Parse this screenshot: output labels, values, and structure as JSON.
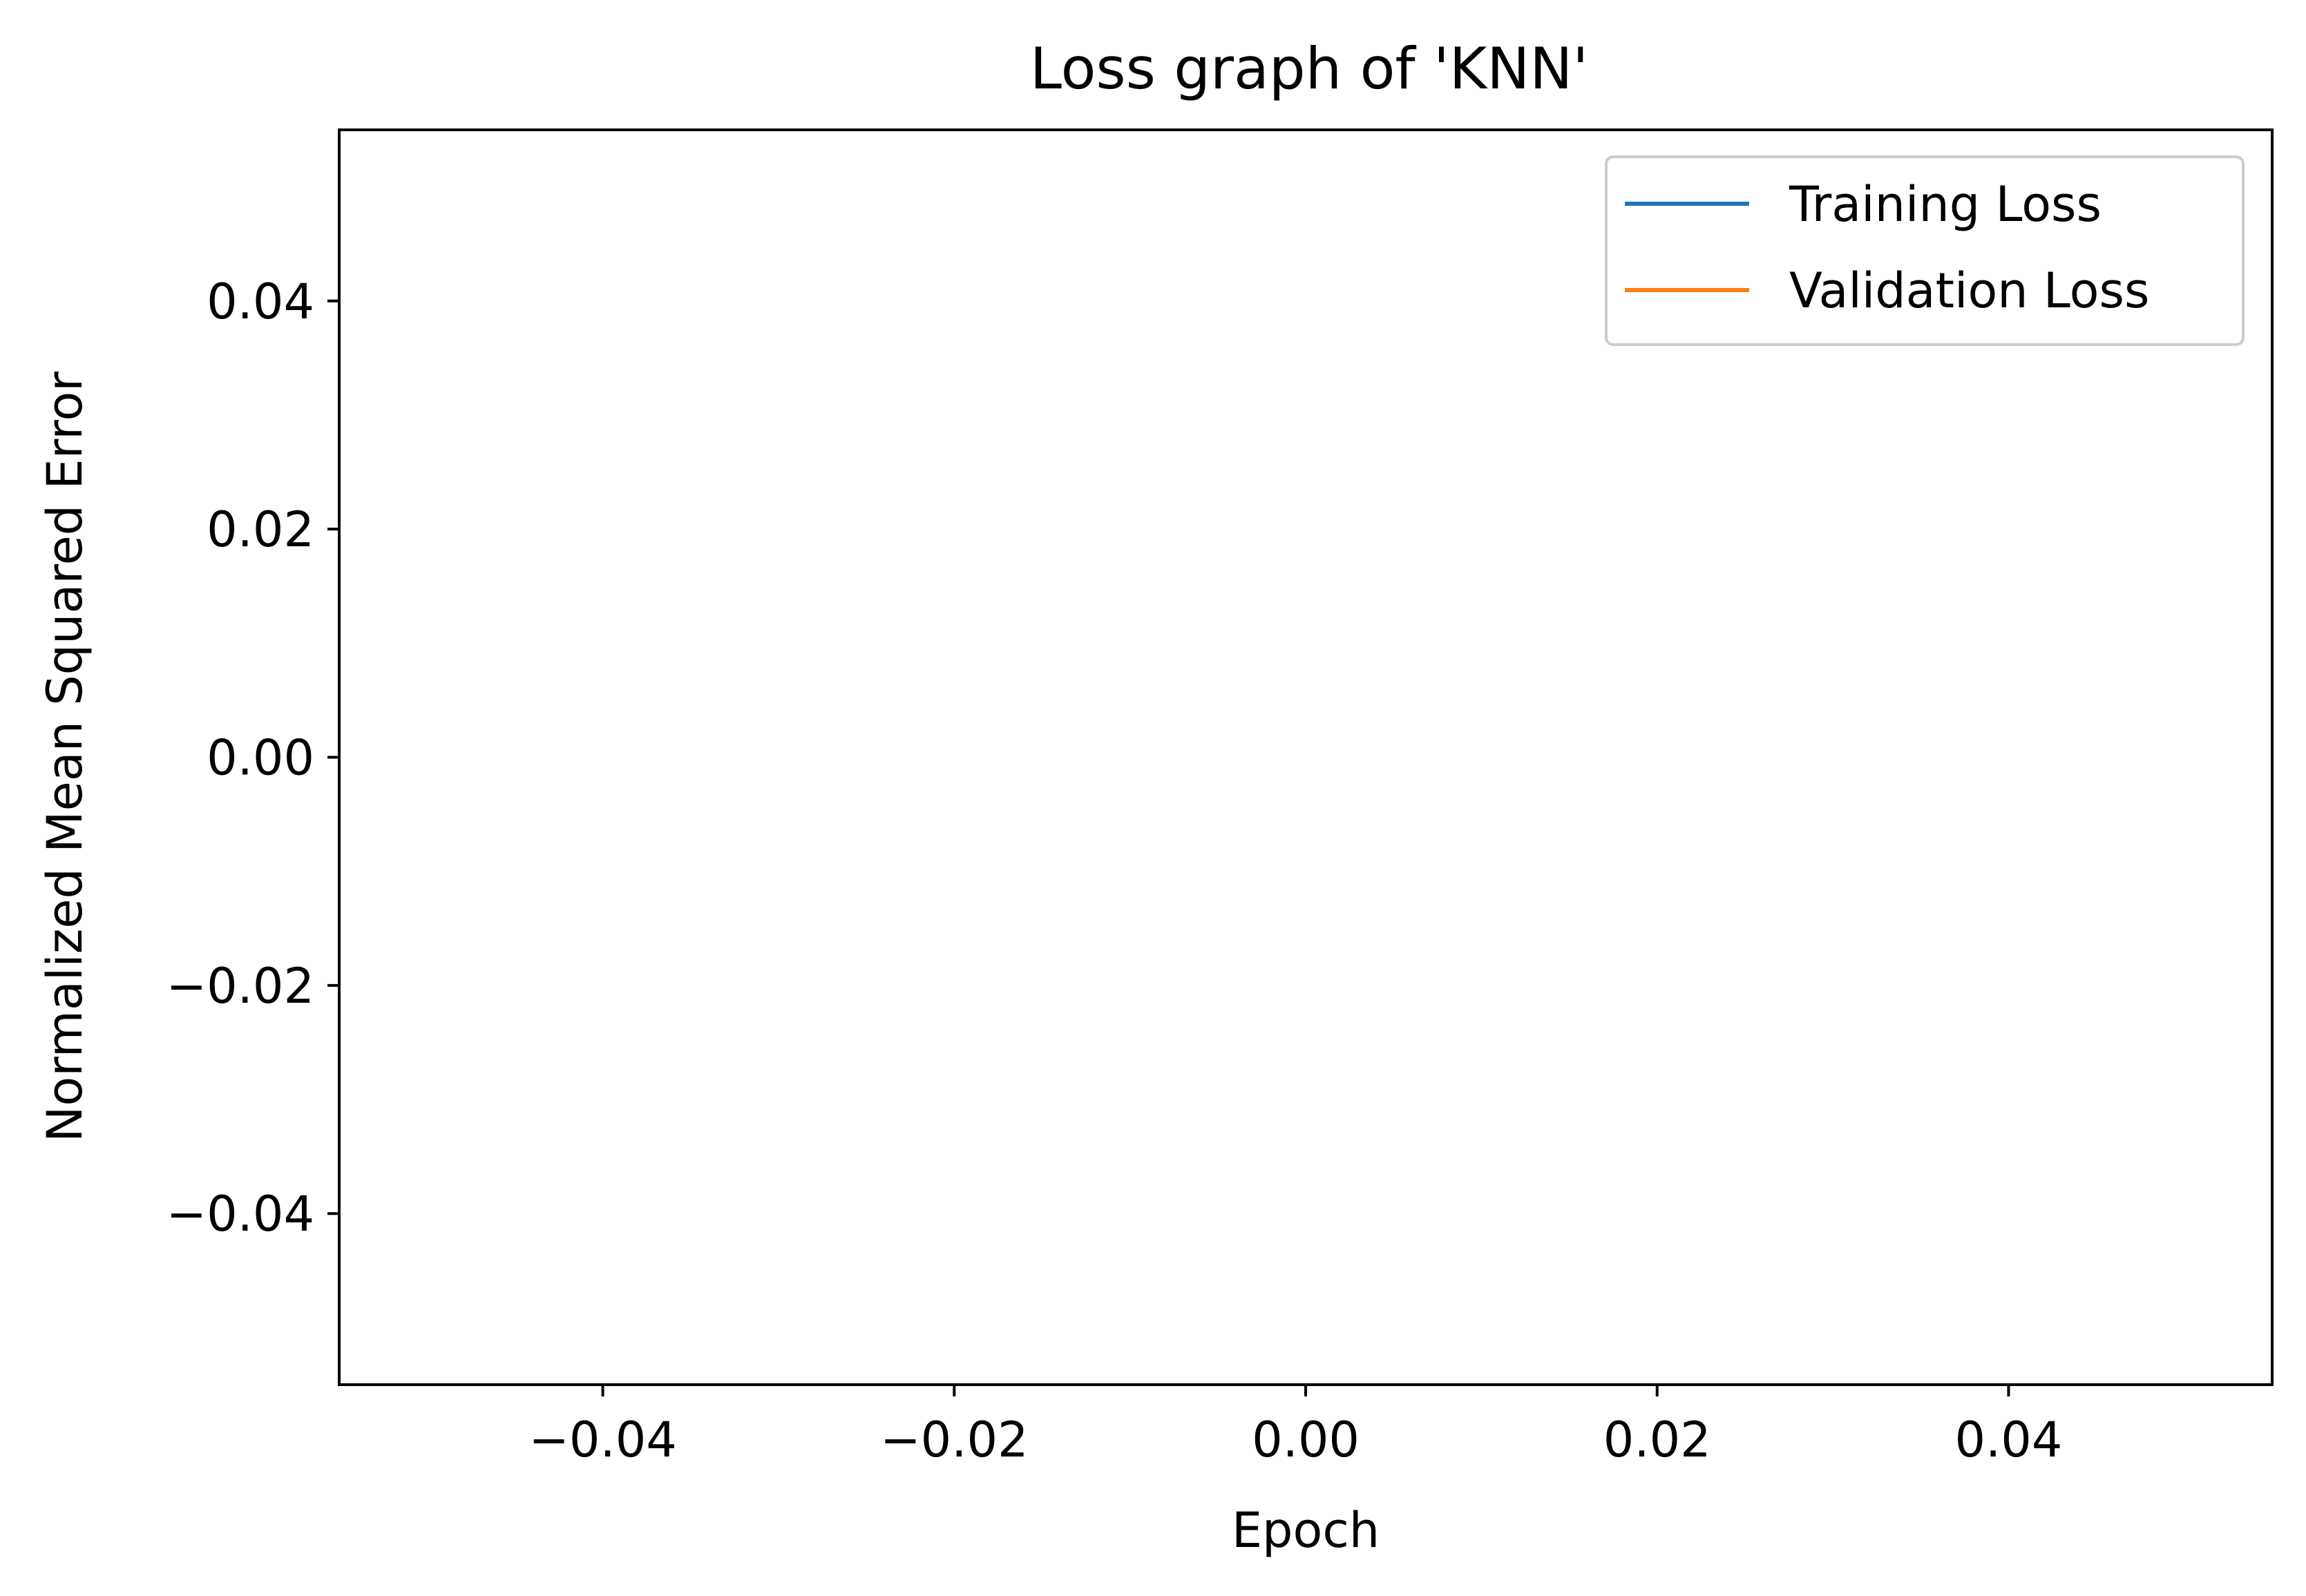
{
  "chart_data": {
    "type": "line",
    "title": "Loss graph of 'KNN'",
    "xlabel": "Epoch",
    "ylabel": "Normalized Mean Squared Error",
    "xlim": [
      -0.055,
      0.055
    ],
    "ylim": [
      -0.055,
      0.055
    ],
    "x_ticks": [
      -0.04,
      -0.02,
      0.0,
      0.02,
      0.04
    ],
    "x_tick_labels": [
      "−0.04",
      "−0.02",
      "0.00",
      "0.02",
      "0.04"
    ],
    "y_ticks": [
      -0.04,
      -0.02,
      0.0,
      0.02,
      0.04
    ],
    "y_tick_labels": [
      "−0.04",
      "−0.02",
      "0.00",
      "0.02",
      "0.04"
    ],
    "grid": false,
    "legend_position": "top-right",
    "series": [
      {
        "name": "Training Loss",
        "color": "#1f77b4",
        "x": [],
        "y": []
      },
      {
        "name": "Validation Loss",
        "color": "#ff7f0e",
        "x": [],
        "y": []
      }
    ]
  }
}
